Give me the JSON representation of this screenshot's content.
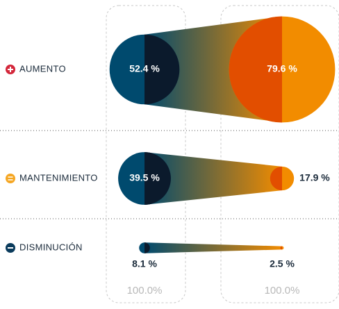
{
  "chart_data": {
    "type": "bubble-comparison",
    "categories": [
      "AUMENTO",
      "MANTENIMIENTO",
      "DISMINUCIÓN"
    ],
    "series": [
      {
        "color": "#004a6e",
        "values": [
          52.4,
          39.5,
          8.1
        ],
        "value_labels": [
          "52.4 %",
          "39.5 %",
          "8.1 %"
        ]
      },
      {
        "color": "#f28c00",
        "values": [
          79.6,
          17.9,
          2.5
        ],
        "value_labels": [
          "79.6 %",
          "17.9 %",
          "2.5 %"
        ]
      }
    ],
    "column_totals": [
      "100.0%",
      "100.0%"
    ]
  }
}
